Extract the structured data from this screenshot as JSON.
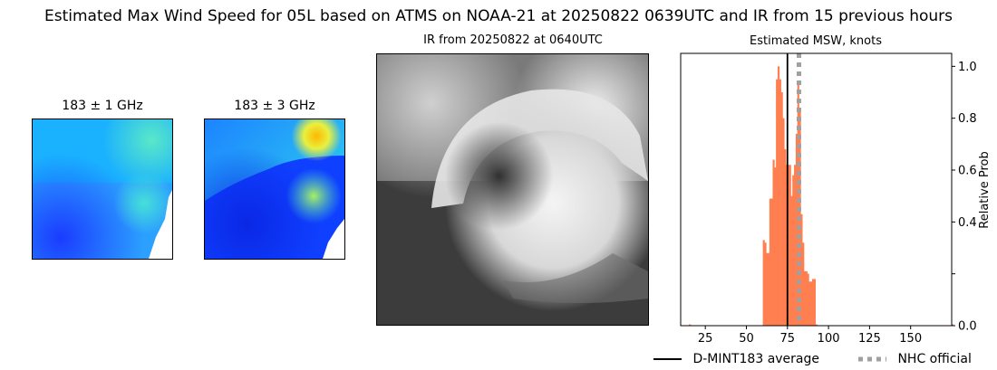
{
  "title": "Estimated Max Wind Speed for 05L based on ATMS on NOAA-21 at 20250822 0639UTC and IR from 15 previous hours",
  "panels": {
    "mw1": {
      "title": "183 ± 1 GHz"
    },
    "mw2": {
      "title": "183 ± 3 GHz"
    },
    "ir": {
      "title": "IR from 20250822 at 0640UTC"
    }
  },
  "chart_data": {
    "type": "bar",
    "title": "Estimated MSW, knots",
    "xlabel": "",
    "ylabel": "Relative Prob",
    "xlim": [
      10,
      175
    ],
    "ylim": [
      0,
      1.05
    ],
    "x_ticks": [
      25,
      50,
      75,
      100,
      125,
      150
    ],
    "y_ticks": [
      0.0,
      0.2,
      0.4,
      0.6,
      0.8,
      1.0
    ],
    "y_tick_labels": [
      "0.0",
      "",
      "0.4",
      "0.6",
      "0.8",
      "1.0"
    ],
    "bar_color": "#ff7f50",
    "bins": {
      "x": [
        15,
        60,
        61,
        62,
        63,
        64,
        65,
        66,
        67,
        68,
        69,
        70,
        71,
        72,
        73,
        74,
        75,
        76,
        77,
        78,
        79,
        80,
        81,
        82,
        83,
        84,
        85,
        86,
        87,
        88,
        89,
        90,
        91,
        92,
        175
      ],
      "values": [
        0.005,
        0.33,
        0.32,
        0.28,
        0.28,
        0.49,
        0.49,
        0.64,
        0.61,
        0.95,
        1.0,
        0.95,
        0.9,
        0.8,
        0.68,
        0.62,
        0.62,
        0.62,
        0.5,
        0.58,
        0.62,
        0.74,
        0.93,
        0.83,
        0.43,
        0.32,
        0.21,
        0.21,
        0.2,
        0.17,
        0.17,
        0.18,
        0.18,
        0.005,
        0.005
      ],
      "width": 1
    },
    "lines": [
      {
        "name": "D-MINT183 average",
        "x": 75,
        "color": "#000000",
        "style": "solid"
      },
      {
        "name": "NHC official",
        "x": 82,
        "color": "#a0a0a0",
        "style": "dotted"
      }
    ],
    "legend": {
      "placement": "bottom-right"
    }
  }
}
